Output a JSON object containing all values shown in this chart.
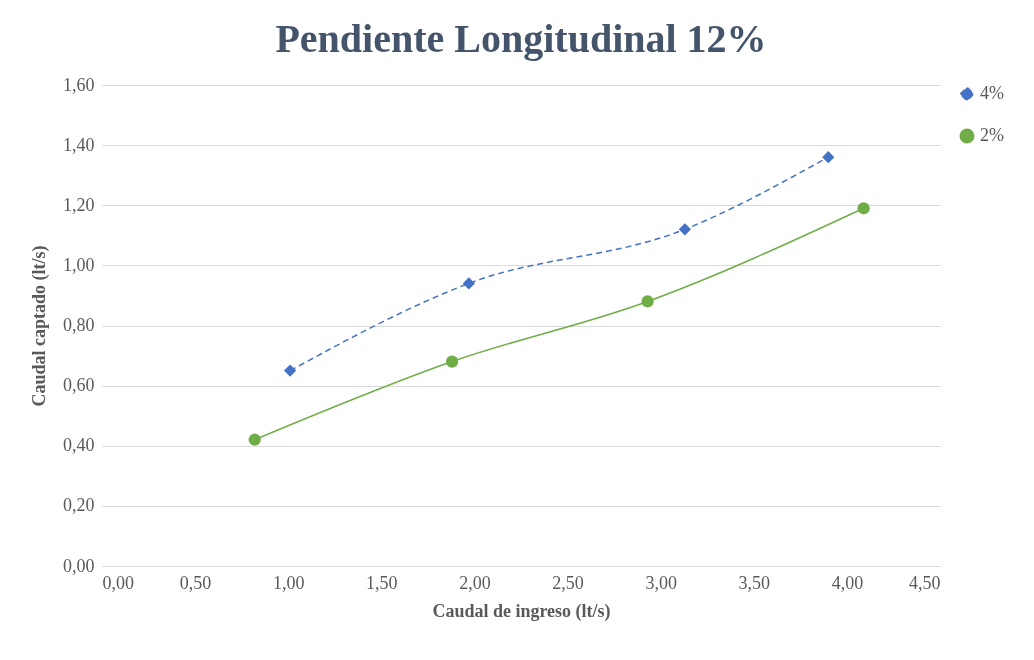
{
  "chart_data": {
    "type": "line",
    "title": "Pendiente Longitudinal 12%",
    "xlabel": "Caudal de ingreso (lt/s)",
    "ylabel": "Caudal captado (lt/s)",
    "xlim": [
      0,
      4.5
    ],
    "xticks": [
      {
        "value": 0,
        "label": "0,00"
      },
      {
        "value": 0.5,
        "label": "0,50"
      },
      {
        "value": 1,
        "label": "1,00"
      },
      {
        "value": 1.5,
        "label": "1,50"
      },
      {
        "value": 2,
        "label": "2,00"
      },
      {
        "value": 2.5,
        "label": "2,50"
      },
      {
        "value": 3,
        "label": "3,00"
      },
      {
        "value": 3.5,
        "label": "3,50"
      },
      {
        "value": 4,
        "label": "4,00"
      },
      {
        "value": 4.5,
        "label": "4,50"
      }
    ],
    "ylim": [
      0,
      1.6
    ],
    "yticks": [
      {
        "value": 0,
        "label": "0,00"
      },
      {
        "value": 0.2,
        "label": "0,20"
      },
      {
        "value": 0.4,
        "label": "0,40"
      },
      {
        "value": 0.6,
        "label": "0,60"
      },
      {
        "value": 0.8,
        "label": "0,80"
      },
      {
        "value": 1,
        "label": "1,00"
      },
      {
        "value": 1.2,
        "label": "1,20"
      },
      {
        "value": 1.4,
        "label": "1,40"
      },
      {
        "value": 1.6,
        "label": "1,60"
      }
    ],
    "grid": "y",
    "legend": "right",
    "series": [
      {
        "name": "4%",
        "color": "#4472c4",
        "marker": "diamond",
        "line_style": "dashed",
        "x": [
          1.01,
          1.97,
          3.13,
          3.9
        ],
        "values": [
          0.65,
          0.94,
          1.12,
          1.36
        ]
      },
      {
        "name": "2%",
        "color": "#70ad47",
        "marker": "circle",
        "line_style": "solid",
        "x": [
          0.82,
          1.88,
          2.93,
          4.09
        ],
        "values": [
          0.42,
          0.68,
          0.88,
          1.19
        ]
      }
    ]
  }
}
